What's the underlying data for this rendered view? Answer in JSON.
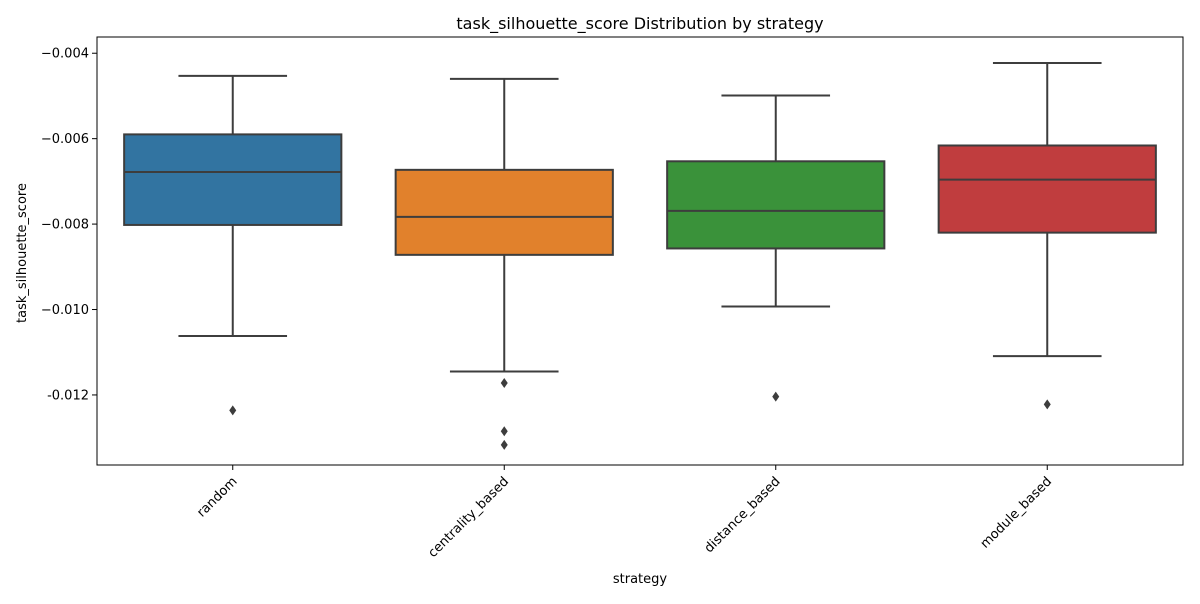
{
  "chart_data": {
    "type": "box",
    "title": "task_silhouette_score Distribution by strategy",
    "xlabel": "strategy",
    "ylabel": "task_silhouette_score",
    "ylim": [
      -0.01364,
      -0.00362
    ],
    "yticks": [
      -0.004,
      -0.006,
      -0.008,
      -0.01,
      -0.012
    ],
    "ytick_labels": [
      "−0.004",
      "−0.006",
      "−0.008",
      "−0.010",
      "-0.012"
    ],
    "grid": false,
    "legend": "none",
    "categories": [
      "random",
      "centrality_based",
      "distance_based",
      "module_based"
    ],
    "colors": [
      "#3274a1",
      "#e1812c",
      "#3a923a",
      "#c03d3e"
    ],
    "line_color": "#3d3d3d",
    "boxes": [
      {
        "category": "random",
        "whisker_low": -0.01062,
        "q1": -0.00802,
        "median": -0.00678,
        "q3": -0.0059,
        "whisker_high": -0.00453,
        "outliers": [
          -0.01236
        ]
      },
      {
        "category": "centrality_based",
        "whisker_low": -0.01145,
        "q1": -0.00872,
        "median": -0.00783,
        "q3": -0.00673,
        "whisker_high": -0.0046,
        "outliers": [
          -0.01172,
          -0.01285,
          -0.01317
        ]
      },
      {
        "category": "distance_based",
        "whisker_low": -0.00993,
        "q1": -0.00857,
        "median": -0.00769,
        "q3": -0.00653,
        "whisker_high": -0.00499,
        "outliers": [
          -0.01204
        ]
      },
      {
        "category": "module_based",
        "whisker_low": -0.01109,
        "q1": -0.0082,
        "median": -0.00696,
        "q3": -0.00616,
        "whisker_high": -0.00423,
        "outliers": [
          -0.01222
        ]
      }
    ]
  }
}
